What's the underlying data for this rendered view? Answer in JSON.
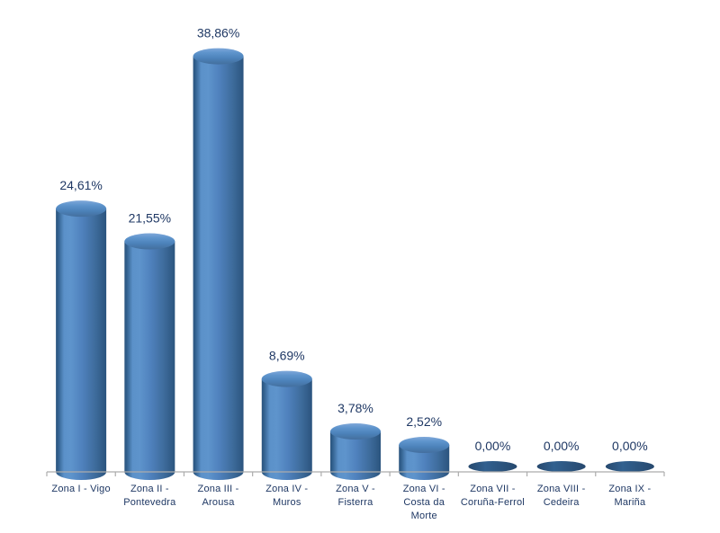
{
  "chart_data": {
    "type": "bar",
    "subtype": "cylinder-3d",
    "title": "",
    "xlabel": "",
    "ylabel": "",
    "categories": [
      "Zona I - Vigo",
      "Zona II - Pontevedra",
      "Zona III - Arousa",
      "Zona IV - Muros",
      "Zona V - Fisterra",
      "Zona VI - Costa da Morte",
      "Zona VII - Coruña-Ferrol",
      "Zona VIII - Cedeira",
      "Zona IX - Mariña"
    ],
    "values": [
      24.61,
      21.55,
      38.86,
      8.69,
      3.78,
      2.52,
      0.0,
      0.0,
      0.0
    ],
    "labels": [
      "24,61%",
      "21,55%",
      "38,86%",
      "8,69%",
      "3,78%",
      "2,52%",
      "0,00%",
      "0,00%",
      "0,00%"
    ],
    "value_unit": "%",
    "decimal_separator": ",",
    "ylim": [
      0,
      40
    ],
    "grid": false,
    "legend": null,
    "colors": {
      "bar_edge_dark": "#2B547E",
      "bar_mid": "#4F81BD",
      "bar_highlight": "#5E94CC",
      "bar_top_light": "#7FA8D9",
      "zero_fill_dark": "#27496E",
      "zero_fill_mid": "#31608F",
      "label_text": "#1F3864",
      "axis_line": "#ACACAC",
      "background": "#FFFFFF"
    }
  }
}
